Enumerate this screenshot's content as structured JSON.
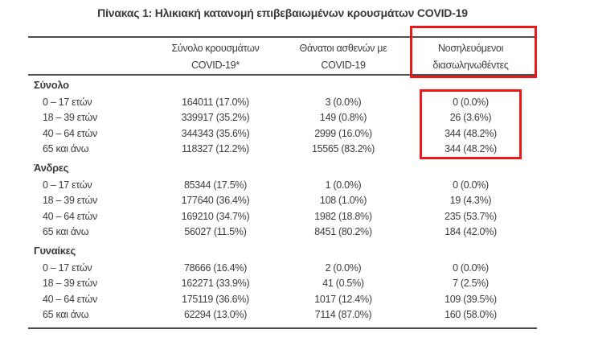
{
  "title": "Πίνακας 1: Ηλικιακή κατανομή επιβεβαιωμένων κρουσμάτων COVID-19",
  "annotation": {
    "color": "#ea1a1a",
    "highlighted_column": "Νοσηλευόμενοι διασωληνωθέντες",
    "highlighted_values_section": "Σύνολο"
  },
  "table": {
    "columns": [
      {
        "line1": "Σύνολο κρουσμάτων",
        "line2": "COVID-19*"
      },
      {
        "line1": "Θάνατοι ασθενών με",
        "line2": "COVID-19"
      },
      {
        "line1": "Νοσηλευόμενοι",
        "line2": "διασωληνωθέντες"
      }
    ],
    "sections": [
      {
        "label": "Σύνολο",
        "rows": [
          {
            "age": "0 – 17 ετών",
            "cases": "164011 (17.0%)",
            "deaths": "3 (0.0%)",
            "intubated": "0 (0.0%)"
          },
          {
            "age": "18 – 39 ετών",
            "cases": "339917 (35.2%)",
            "deaths": "149 (0.8%)",
            "intubated": "26 (3.6%)"
          },
          {
            "age": "40 – 64 ετών",
            "cases": "344343 (35.6%)",
            "deaths": "2999 (16.0%)",
            "intubated": "344 (48.2%)"
          },
          {
            "age": "65 και άνω",
            "cases": "118327 (12.2%)",
            "deaths": "15565 (83.2%)",
            "intubated": "344 (48.2%)"
          }
        ]
      },
      {
        "label": "Άνδρες",
        "rows": [
          {
            "age": "0 – 17 ετών",
            "cases": "85344 (17.5%)",
            "deaths": "1 (0.0%)",
            "intubated": "0 (0.0%)"
          },
          {
            "age": "18 – 39 ετών",
            "cases": "177640 (36.4%)",
            "deaths": "108 (1.0%)",
            "intubated": "19 (4.3%)"
          },
          {
            "age": "40 – 64 ετών",
            "cases": "169210 (34.7%)",
            "deaths": "1982 (18.8%)",
            "intubated": "235 (53.7%)"
          },
          {
            "age": "65 και άνω",
            "cases": "56027 (11.5%)",
            "deaths": "8451 (80.2%)",
            "intubated": "184 (42.0%)"
          }
        ]
      },
      {
        "label": "Γυναίκες",
        "rows": [
          {
            "age": "0 – 17 ετών",
            "cases": "78666 (16.4%)",
            "deaths": "2 (0.0%)",
            "intubated": "0 (0.0%)"
          },
          {
            "age": "18 – 39 ετών",
            "cases": "162271 (33.9%)",
            "deaths": "41 (0.5%)",
            "intubated": "7 (2.5%)"
          },
          {
            "age": "40 – 64 ετών",
            "cases": "175119 (36.6%)",
            "deaths": "1017 (12.4%)",
            "intubated": "109 (39.5%)"
          },
          {
            "age": "65 και άνω",
            "cases": "62294 (13.0%)",
            "deaths": "7114 (87.0%)",
            "intubated": "160 (58.0%)"
          }
        ]
      }
    ]
  }
}
